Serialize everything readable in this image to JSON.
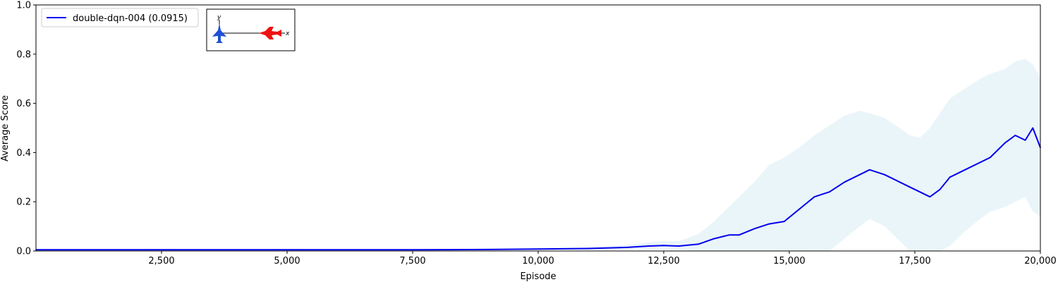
{
  "chart_data": {
    "type": "line",
    "title": "",
    "xlabel": "Episode",
    "ylabel": "Average Score",
    "xlim": [
      0,
      20000
    ],
    "ylim": [
      0.0,
      1.0
    ],
    "grid": false,
    "legend_position": "top-left",
    "x_ticks": [
      2500,
      5000,
      7500,
      10000,
      12500,
      15000,
      17500,
      20000
    ],
    "x_tick_labels": [
      "2,500",
      "5,000",
      "7,500",
      "10,000",
      "12,500",
      "15,000",
      "17,500",
      "20,000"
    ],
    "y_ticks": [
      0.0,
      0.2,
      0.4,
      0.6,
      0.8,
      1.0
    ],
    "y_tick_labels": [
      "0.0",
      "0.2",
      "0.4",
      "0.6",
      "0.8",
      "1.0"
    ],
    "series": [
      {
        "name": "double-dqn-004 (0.0915)",
        "color": "#0000ee",
        "band_color": "#add8e6",
        "x": [
          0,
          2500,
          5000,
          7500,
          9000,
          10000,
          11000,
          11800,
          12200,
          12500,
          12800,
          13200,
          13500,
          13800,
          14000,
          14300,
          14600,
          14900,
          15200,
          15500,
          15800,
          16100,
          16400,
          16600,
          16900,
          17200,
          17400,
          17600,
          17800,
          18000,
          18200,
          18500,
          18800,
          19000,
          19300,
          19500,
          19700,
          19850,
          20000
        ],
        "y": [
          0.005,
          0.005,
          0.005,
          0.005,
          0.006,
          0.008,
          0.01,
          0.015,
          0.02,
          0.022,
          0.02,
          0.028,
          0.05,
          0.065,
          0.065,
          0.09,
          0.11,
          0.12,
          0.17,
          0.22,
          0.24,
          0.28,
          0.31,
          0.33,
          0.31,
          0.28,
          0.26,
          0.24,
          0.22,
          0.25,
          0.3,
          0.33,
          0.36,
          0.38,
          0.44,
          0.47,
          0.45,
          0.5,
          0.42
        ],
        "upper": [
          0.006,
          0.006,
          0.006,
          0.007,
          0.008,
          0.012,
          0.016,
          0.025,
          0.035,
          0.04,
          0.04,
          0.07,
          0.12,
          0.18,
          0.22,
          0.28,
          0.35,
          0.38,
          0.42,
          0.47,
          0.51,
          0.55,
          0.57,
          0.56,
          0.54,
          0.5,
          0.47,
          0.46,
          0.5,
          0.56,
          0.62,
          0.66,
          0.7,
          0.72,
          0.74,
          0.77,
          0.78,
          0.76,
          0.7
        ],
        "lower": [
          0.004,
          0.004,
          0.004,
          0.004,
          0.004,
          0.005,
          0.005,
          0.006,
          0.007,
          0.008,
          0.005,
          0.0,
          0.0,
          0.0,
          0.0,
          0.0,
          0.0,
          0.0,
          0.0,
          0.0,
          0.0,
          0.05,
          0.1,
          0.13,
          0.1,
          0.04,
          0.0,
          0.0,
          0.0,
          0.0,
          0.02,
          0.08,
          0.13,
          0.16,
          0.18,
          0.2,
          0.22,
          0.16,
          0.14
        ]
      }
    ]
  }
}
